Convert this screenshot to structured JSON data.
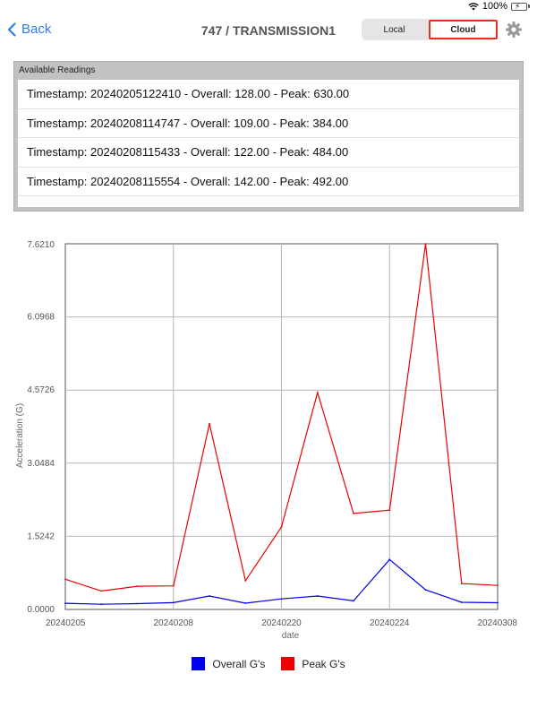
{
  "status_bar": {
    "battery_text": "100%"
  },
  "nav": {
    "back_label": "Back",
    "title": "747 / TRANSMISSION1",
    "segments": [
      "Local",
      "Cloud"
    ],
    "selected_segment": "Cloud"
  },
  "readings": {
    "header": "Available Readings",
    "items": [
      "Timestamp: 20240205122410 - Overall: 128.00 - Peak: 630.00",
      "Timestamp: 20240208114747 - Overall: 109.00 - Peak: 384.00",
      "Timestamp: 20240208115433 - Overall: 122.00 - Peak: 484.00",
      "Timestamp: 20240208115554 - Overall: 142.00 - Peak: 492.00"
    ]
  },
  "chart_data": {
    "type": "line",
    "xlabel": "date",
    "ylabel": "Acceleration (G)",
    "ylim": [
      0,
      7.621
    ],
    "yticks": [
      "0.0000",
      "1.5242",
      "3.0484",
      "4.5726",
      "6.0968",
      "7.6210"
    ],
    "xticks": [
      "20240205",
      "20240208",
      "20240220",
      "20240224",
      "20240308"
    ],
    "grid": true,
    "legend_position": "bottom",
    "series": [
      {
        "name": "Overall G's",
        "color": "#0000ee",
        "values": [
          0.128,
          0.109,
          0.122,
          0.142,
          0.28,
          0.13,
          0.22,
          0.28,
          0.18,
          1.04,
          0.41,
          0.15,
          0.14
        ]
      },
      {
        "name": "Peak G's",
        "color": "#ee0000",
        "values": [
          0.63,
          0.384,
          0.484,
          0.492,
          3.87,
          0.6,
          1.72,
          4.52,
          2.0,
          2.07,
          7.62,
          0.54,
          0.5
        ]
      }
    ]
  }
}
